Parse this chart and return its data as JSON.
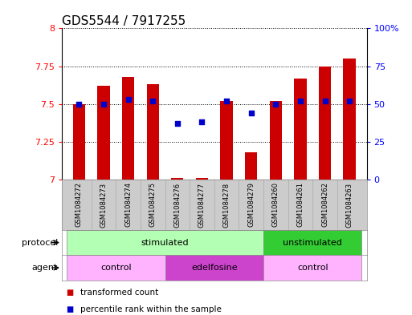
{
  "title": "GDS5544 / 7917255",
  "samples": [
    "GSM1084272",
    "GSM1084273",
    "GSM1084274",
    "GSM1084275",
    "GSM1084276",
    "GSM1084277",
    "GSM1084278",
    "GSM1084279",
    "GSM1084260",
    "GSM1084261",
    "GSM1084262",
    "GSM1084263"
  ],
  "red_values": [
    7.5,
    7.62,
    7.68,
    7.63,
    7.01,
    7.01,
    7.52,
    7.18,
    7.52,
    7.67,
    7.75,
    7.8
  ],
  "blue_values": [
    50,
    50,
    53,
    52,
    37,
    38,
    52,
    44,
    50,
    52,
    52,
    52
  ],
  "ylim_left": [
    7.0,
    8.0
  ],
  "ylim_right": [
    0,
    100
  ],
  "yticks_left": [
    7.0,
    7.25,
    7.5,
    7.75,
    8.0
  ],
  "ytick_labels_left": [
    "7",
    "7.25",
    "7.5",
    "7.75",
    "8"
  ],
  "yticks_right": [
    0,
    25,
    50,
    75,
    100
  ],
  "ytick_labels_right": [
    "0",
    "25",
    "50",
    "75",
    "100%"
  ],
  "bar_color": "#cc0000",
  "dot_color": "#0000cc",
  "bar_width": 0.5,
  "protocol_groups": [
    {
      "label": "stimulated",
      "start": 0,
      "end": 8,
      "color": "#b3ffb3"
    },
    {
      "label": "unstimulated",
      "start": 8,
      "end": 12,
      "color": "#33cc33"
    }
  ],
  "agent_groups": [
    {
      "label": "control",
      "start": 0,
      "end": 4,
      "color": "#ffb3ff"
    },
    {
      "label": "edelfosine",
      "start": 4,
      "end": 8,
      "color": "#cc44cc"
    },
    {
      "label": "control",
      "start": 8,
      "end": 12,
      "color": "#ffb3ff"
    }
  ],
  "legend_red_label": "transformed count",
  "legend_blue_label": "percentile rank within the sample",
  "protocol_label": "protocol",
  "agent_label": "agent",
  "sample_bg_color": "#cccccc",
  "background_color": "#ffffff"
}
